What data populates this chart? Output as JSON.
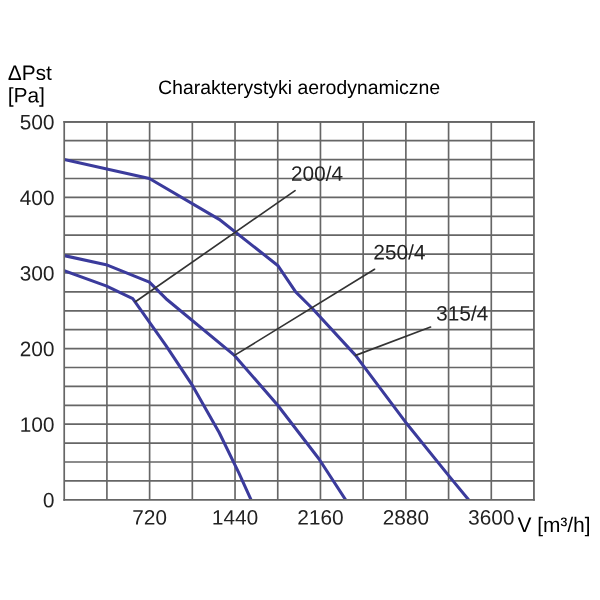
{
  "chart_data": {
    "type": "line",
    "title": "Charakterystyki aerodynamiczne",
    "xlabel": "V [m³/h]",
    "ylabel": "ΔPst\n[Pa]",
    "series": [
      {
        "color": "#3b3b9c",
        "x": [
          0,
          718,
          1306,
          1800,
          1951,
          2092,
          2456,
          2876,
          3241,
          3409
        ],
        "values": [
          450,
          425,
          371,
          310,
          275,
          253,
          191,
          103,
          32,
          0
        ]
      },
      {
        "color": "#3b3b9c",
        "x": [
          0,
          353,
          718,
          858,
          1435,
          1800,
          2148,
          2372
        ],
        "values": [
          323,
          311,
          288,
          266,
          191,
          125,
          54,
          0
        ]
      },
      {
        "color": "#3b3b9c",
        "x": [
          0,
          353,
          578,
          858,
          1082,
          1306,
          1474,
          1575
        ],
        "values": [
          303,
          283,
          266,
          204,
          151,
          89,
          35,
          0
        ]
      }
    ],
    "annotations": [
      {
        "text": "200/4",
        "x": 600,
        "y": 262
      },
      {
        "text": "250/4",
        "x": 1435,
        "y": 191
      },
      {
        "text": "315/4",
        "x": 2456,
        "y": 191
      }
    ],
    "xlim": [
      0,
      3960
    ],
    "ylim": [
      0,
      500
    ],
    "xticks": [
      {
        "value": 0,
        "label": null
      },
      {
        "value": 360,
        "label": null
      },
      720,
      {
        "value": 1080,
        "label": null
      },
      1440,
      {
        "value": 1800,
        "label": null
      },
      2160,
      {
        "value": 2520,
        "label": null
      },
      2880,
      {
        "value": 3240,
        "label": null
      },
      3600,
      {
        "value": 3960,
        "label": null
      }
    ],
    "yticks": [
      0,
      {
        "value": 25,
        "label": null
      },
      {
        "value": 50,
        "label": null
      },
      {
        "value": 75,
        "label": null
      },
      100,
      {
        "value": 125,
        "label": null
      },
      {
        "value": 150,
        "label": null
      },
      {
        "value": 175,
        "label": null
      },
      200,
      {
        "value": 225,
        "label": null
      },
      {
        "value": 250,
        "label": null
      },
      {
        "value": 275,
        "label": null
      },
      300,
      {
        "value": 325,
        "label": null
      },
      {
        "value": 350,
        "label": null
      },
      {
        "value": 375,
        "label": null
      },
      400,
      {
        "value": 425,
        "label": null
      },
      {
        "value": 450,
        "label": null
      },
      {
        "value": 475,
        "label": null
      },
      500
    ],
    "grid": true,
    "marker": "none",
    "line_style": "solid",
    "legend": false
  }
}
